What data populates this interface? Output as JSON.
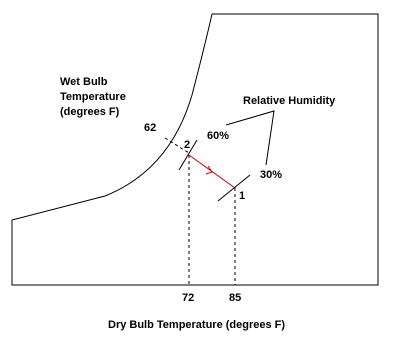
{
  "wet_bulb_label": [
    "Wet Bulb",
    "Temperature",
    "(degrees F)"
  ],
  "wet_bulb_value": "62",
  "humidity_label": "Relative Humidity",
  "humidity_values": [
    "60%",
    "30%"
  ],
  "points": [
    "1",
    "2"
  ],
  "dry_bulb_values": [
    "72",
    "85"
  ],
  "dry_bulb_label": "Dry Bulb Temperature (degrees F)"
}
